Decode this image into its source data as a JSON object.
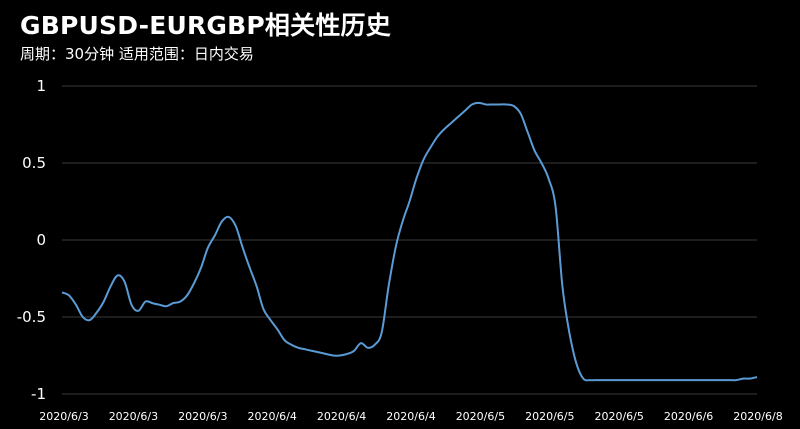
{
  "header": {
    "title": "GBPUSD-EURGBP相关性历史",
    "subtitle": "周期：30分钟 适用范围：日内交易"
  },
  "colors": {
    "background": "#000000",
    "line": "#5b9bd5",
    "grid": "#3a3a3a",
    "text": "#ffffff"
  },
  "chart_data": {
    "type": "line",
    "title": "GBPUSD-EURGBP相关性历史",
    "subtitle": "周期：30分钟 适用范围：日内交易",
    "xlabel": "",
    "ylabel": "",
    "ylim": [
      -1,
      1
    ],
    "yticks": [
      1,
      0.5,
      0,
      -0.5,
      -1
    ],
    "ytick_labels": [
      "1",
      "0.5",
      "0",
      "-0.5",
      "-1"
    ],
    "grid": true,
    "legend": "none",
    "xtick_labels": [
      "2020/6/3",
      "2020/6/3",
      "2020/6/3",
      "2020/6/4",
      "2020/6/4",
      "2020/6/4",
      "2020/6/5",
      "2020/6/5",
      "2020/6/5",
      "2020/6/6",
      "2020/6/8"
    ],
    "x": [
      0,
      1,
      2,
      3,
      4,
      5,
      6,
      7,
      8,
      9,
      10,
      11,
      12,
      13,
      14,
      15,
      16,
      17,
      18,
      19,
      20,
      21,
      22,
      23,
      24,
      25,
      26,
      27,
      28,
      29,
      30,
      31,
      32,
      33,
      34,
      35,
      36,
      37,
      38,
      39,
      40,
      41,
      42,
      43,
      44,
      45,
      46,
      47,
      48,
      49,
      50,
      51,
      52,
      53,
      54,
      55,
      56,
      57,
      58,
      59,
      60,
      61,
      62,
      63,
      64,
      65,
      66,
      67,
      68,
      69,
      70,
      71,
      72,
      73,
      74,
      75,
      76,
      77,
      78,
      79,
      80,
      81,
      82,
      83,
      84,
      85,
      86,
      87,
      88,
      89,
      90,
      91,
      92,
      93,
      94,
      95,
      96,
      97,
      98,
      99,
      100
    ],
    "series": [
      {
        "values": [
          -0.34,
          -0.36,
          -0.42,
          -0.5,
          -0.52,
          -0.47,
          -0.4,
          -0.3,
          -0.23,
          -0.27,
          -0.42,
          -0.46,
          -0.4,
          -0.41,
          -0.42,
          -0.43,
          -0.41,
          -0.4,
          -0.36,
          -0.28,
          -0.18,
          -0.05,
          0.03,
          0.12,
          0.15,
          0.09,
          -0.05,
          -0.18,
          -0.3,
          -0.45,
          -0.52,
          -0.58,
          -0.65,
          -0.68,
          -0.7,
          -0.71,
          -0.72,
          -0.73,
          -0.74,
          -0.75,
          -0.75,
          -0.74,
          -0.72,
          -0.67,
          -0.7,
          -0.68,
          -0.6,
          -0.3,
          -0.05,
          0.12,
          0.25,
          0.4,
          0.52,
          0.6,
          0.67,
          0.72,
          0.76,
          0.8,
          0.84,
          0.88,
          0.89,
          0.88,
          0.88,
          0.88,
          0.88,
          0.87,
          0.82,
          0.7,
          0.58,
          0.5,
          0.4,
          0.22,
          -0.3,
          -0.6,
          -0.8,
          -0.9,
          -0.91,
          -0.91,
          -0.91,
          -0.91,
          -0.91,
          -0.91,
          -0.91,
          -0.91,
          -0.91,
          -0.91,
          -0.91,
          -0.91,
          -0.91,
          -0.91,
          -0.91,
          -0.91,
          -0.91,
          -0.91,
          -0.91,
          -0.91,
          -0.91,
          -0.91,
          -0.9,
          -0.9,
          -0.89
        ]
      }
    ]
  }
}
